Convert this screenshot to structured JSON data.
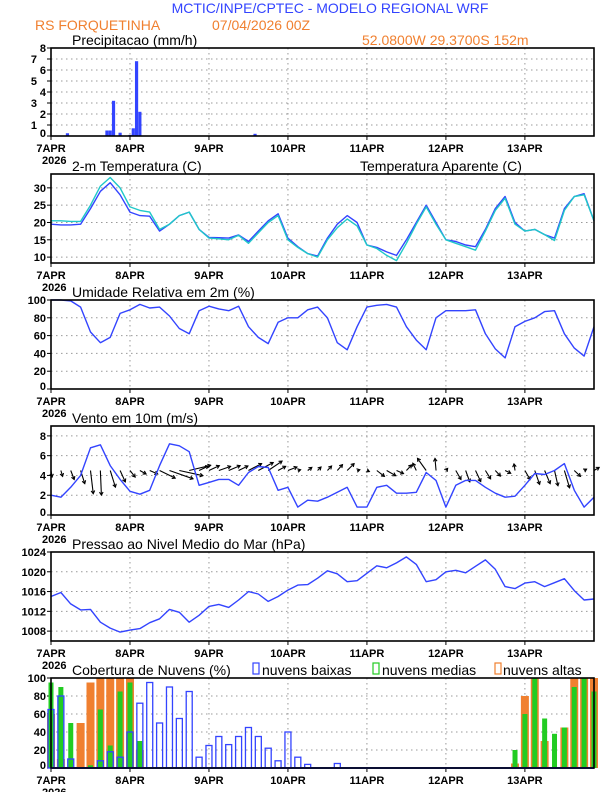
{
  "header": {
    "title": "MCTIC/INPE/CPTEC - MODELO REGIONAL WRF",
    "station": "RS FORQUETINHA",
    "run": "07/04/2026 00Z",
    "location": "52.0800W 29.3700S 152m"
  },
  "colors": {
    "title": "#3344ff",
    "orange": "#f08030",
    "blue": "#3344ff",
    "cyan": "#20c8c8",
    "green": "#22cc22"
  },
  "x_axis": {
    "tick_labels": [
      "7APR",
      "8APR",
      "9APR",
      "10APR",
      "11APR",
      "12APR",
      "13APR"
    ],
    "year_label": "2026",
    "xlim": [
      "2026-04-07T00",
      "2026-04-13T21"
    ]
  },
  "forecast_times": [
    "2026-04-07T00",
    "2026-04-07T03",
    "2026-04-07T06",
    "2026-04-07T09",
    "2026-04-07T12",
    "2026-04-07T15",
    "2026-04-07T18",
    "2026-04-07T21",
    "2026-04-08T00",
    "2026-04-08T03",
    "2026-04-08T06",
    "2026-04-08T09",
    "2026-04-08T12",
    "2026-04-08T15",
    "2026-04-08T18",
    "2026-04-08T21",
    "2026-04-09T00",
    "2026-04-09T03",
    "2026-04-09T06",
    "2026-04-09T09",
    "2026-04-09T12",
    "2026-04-09T15",
    "2026-04-09T18",
    "2026-04-09T21",
    "2026-04-10T00",
    "2026-04-10T03",
    "2026-04-10T06",
    "2026-04-10T09",
    "2026-04-10T12",
    "2026-04-10T15",
    "2026-04-10T18",
    "2026-04-10T21",
    "2026-04-11T00",
    "2026-04-11T03",
    "2026-04-11T06",
    "2026-04-11T09",
    "2026-04-11T12",
    "2026-04-11T15",
    "2026-04-11T18",
    "2026-04-11T21",
    "2026-04-12T00",
    "2026-04-12T03",
    "2026-04-12T06",
    "2026-04-12T09",
    "2026-04-12T12",
    "2026-04-12T15",
    "2026-04-12T18",
    "2026-04-12T21",
    "2026-04-13T00",
    "2026-04-13T03",
    "2026-04-13T06",
    "2026-04-13T09",
    "2026-04-13T12",
    "2026-04-13T15",
    "2026-04-13T18",
    "2026-04-13T21"
  ],
  "chart_data": [
    {
      "type": "bar",
      "title": "Precipitacao (mm/h)",
      "ylim": [
        0,
        8
      ],
      "yticks": [
        0,
        1,
        2,
        3,
        4,
        5,
        6,
        7,
        8
      ],
      "grid": true,
      "color": "#3344ff",
      "points": [
        {
          "t": "2026-04-07T05",
          "v": 0.25
        },
        {
          "t": "2026-04-07T17",
          "v": 0.5
        },
        {
          "t": "2026-04-07T18",
          "v": 0.5
        },
        {
          "t": "2026-04-07T19",
          "v": 3.2
        },
        {
          "t": "2026-04-07T21",
          "v": 0.3
        },
        {
          "t": "2026-04-08T00",
          "v": 0.1
        },
        {
          "t": "2026-04-08T01",
          "v": 0.7
        },
        {
          "t": "2026-04-08T02",
          "v": 6.8
        },
        {
          "t": "2026-04-08T03",
          "v": 2.2
        },
        {
          "t": "2026-04-08T14",
          "v": 0.05
        },
        {
          "t": "2026-04-09T14",
          "v": 0.2
        },
        {
          "t": "2026-04-09T17",
          "v": 0.05
        }
      ]
    },
    {
      "type": "line",
      "title": "2-m Temperatura (C)",
      "ylim": [
        8.3,
        34
      ],
      "yticks": [
        10,
        15,
        20,
        25,
        30
      ],
      "grid": true,
      "series": [
        {
          "name": "2-m Temperatura (C)",
          "color": "#3344ff",
          "values": [
            19.5,
            19.3,
            19.3,
            19.5,
            24,
            29,
            31.5,
            28,
            23,
            22,
            21.8,
            17.5,
            19.5,
            22,
            23,
            18,
            15.7,
            15.6,
            15.5,
            16.4,
            14.5,
            17.5,
            20.5,
            22.5,
            15.5,
            13,
            11,
            10.3,
            15.5,
            19.5,
            22,
            20,
            13.5,
            12.8,
            11.5,
            10.5,
            15,
            20,
            25,
            20,
            15,
            14.5,
            13.5,
            13,
            18,
            24,
            27.5,
            20,
            17.5,
            18,
            16.5,
            15.5,
            24,
            27.5,
            28.3,
            20.5
          ]
        },
        {
          "name": "Temperatura Aparente (C)",
          "color": "#20c8c8",
          "values": [
            20.5,
            20.5,
            20.3,
            20.3,
            25,
            30.5,
            33,
            30,
            24.5,
            23.5,
            23,
            18,
            19.5,
            22,
            23,
            18,
            15.5,
            15.3,
            15,
            16.3,
            14,
            17,
            20,
            22,
            15,
            12.8,
            11,
            10,
            15,
            18.5,
            21,
            19,
            13.5,
            12.5,
            10.5,
            9,
            14,
            19.5,
            24.5,
            19.5,
            15,
            14,
            13,
            12,
            17.5,
            23.5,
            27,
            19.5,
            17.5,
            18,
            16.5,
            14.8,
            23.5,
            27.5,
            28,
            20.5
          ]
        }
      ]
    },
    {
      "type": "line",
      "title": "Umidade Relativa em 2m (%)",
      "ylim": [
        0,
        100
      ],
      "yticks": [
        0,
        20,
        40,
        60,
        80,
        100
      ],
      "grid": true,
      "series": [
        {
          "color": "#3344ff",
          "values": [
            100,
            100,
            99,
            92,
            64,
            52,
            58,
            85,
            89,
            95,
            91,
            92,
            82,
            68,
            62,
            88,
            93,
            90,
            88,
            93,
            70,
            58,
            51,
            75,
            80,
            80,
            89,
            92,
            80,
            52,
            44,
            70,
            92,
            94,
            95,
            92,
            70,
            55,
            44,
            80,
            88,
            88,
            88,
            89,
            62,
            45,
            35,
            70,
            76,
            80,
            87,
            88,
            62,
            46,
            37,
            70
          ]
        }
      ]
    },
    {
      "type": "line+vector",
      "title": "Vento em 10m (m/s)",
      "ylim": [
        0,
        9
      ],
      "yticks": [
        0,
        2,
        4,
        6,
        8
      ],
      "grid": true,
      "series": [
        {
          "color": "#3344ff",
          "values": [
            2,
            1.8,
            2.8,
            4,
            6.8,
            7.1,
            5,
            3.6,
            2.4,
            2.1,
            2.5,
            5,
            7.2,
            7,
            6.4,
            3,
            3.3,
            3.6,
            3.6,
            3,
            4.3,
            4.9,
            4.8,
            2.5,
            2.8,
            0.8,
            1.5,
            1.4,
            1.8,
            2.3,
            2.8,
            0.8,
            0.8,
            2.8,
            3,
            2.2,
            2.2,
            2.3,
            4.3,
            3.5,
            0.8,
            3,
            3.5,
            3.5,
            2.8,
            2.2,
            1.8,
            1.9,
            3,
            4.2,
            4.1,
            4.5,
            5.2,
            2.5,
            0.8,
            1.8
          ]
        }
      ],
      "vectors": {
        "color": "#000000",
        "u": [
          0.3,
          0.5,
          1,
          1.2,
          0.8,
          0.3,
          1.5,
          1.5,
          1.5,
          1.8,
          2.3,
          4.5,
          6.8,
          6.8,
          6.2,
          2.7,
          3,
          3.4,
          3.3,
          2.7,
          3.8,
          4.3,
          4,
          2.2,
          2.6,
          0.8,
          1.2,
          1,
          1.2,
          1.5,
          2,
          0.8,
          0.7,
          2.2,
          2.6,
          2,
          1.5,
          -1,
          -2.5,
          -0.3,
          0.5,
          1.5,
          1.2,
          1.5,
          1.5,
          1.5,
          1.6,
          -0.3,
          1.5,
          1.4,
          1.6,
          1,
          1.5,
          1.8,
          0.7,
          1.5
        ],
        "v": [
          -1.9,
          -1.7,
          -2.6,
          -3.8,
          -6.7,
          -7.1,
          -4.8,
          -3.3,
          -1.9,
          -1,
          -1,
          -2.2,
          -2.4,
          -1.5,
          1.5,
          1.3,
          1.4,
          1.2,
          1.4,
          1.3,
          2,
          2.3,
          2.7,
          1.2,
          1,
          0.2,
          0.9,
          1,
          1.3,
          1.7,
          2,
          0.2,
          -0.3,
          -1.7,
          -1.5,
          -0.9,
          1.6,
          2.1,
          3.5,
          3.5,
          0.6,
          -2.6,
          -3.3,
          -3.2,
          -2.4,
          -1.6,
          -0.8,
          1.9,
          -2.6,
          -4,
          -3.8,
          -4.4,
          -5,
          -1.7,
          0.4,
          0.9
        ]
      }
    },
    {
      "type": "line",
      "title": "Pressao ao Nivel Medio do Mar (hPa)",
      "ylim": [
        1006,
        1024
      ],
      "yticks": [
        1008,
        1012,
        1016,
        1020,
        1024
      ],
      "grid": true,
      "series": [
        {
          "color": "#3344ff",
          "values": [
            1015,
            1015.8,
            1013.5,
            1012.3,
            1012.4,
            1009.8,
            1008.6,
            1007.8,
            1008.2,
            1008.5,
            1009.7,
            1010.5,
            1012.4,
            1011.8,
            1009.8,
            1011.2,
            1013,
            1013.4,
            1012.8,
            1014.3,
            1016,
            1015.5,
            1014,
            1015,
            1016.3,
            1017.3,
            1017.4,
            1018.7,
            1020.2,
            1019.6,
            1018,
            1018.2,
            1019.7,
            1021.2,
            1020.8,
            1021.8,
            1023,
            1021.5,
            1018,
            1018.4,
            1020,
            1020.3,
            1019.8,
            1021.1,
            1022.4,
            1020.5,
            1017,
            1016.6,
            1017.7,
            1018,
            1017,
            1017.8,
            1018.6,
            1016.2,
            1014.3,
            1014.5
          ]
        }
      ]
    },
    {
      "type": "bar",
      "title": "Cobertura de Nuvens (%)",
      "ylim": [
        0,
        100
      ],
      "yticks": [
        0,
        20,
        40,
        60,
        80,
        100
      ],
      "grid": true,
      "legend": "top",
      "series": [
        {
          "name": "nuvens altas",
          "color": "#f08030",
          "values": [
            60,
            10,
            0,
            50,
            95,
            100,
            100,
            100,
            100,
            20,
            0,
            0,
            0,
            0,
            0,
            0,
            0,
            0,
            0,
            0,
            0,
            0,
            0,
            0,
            0,
            0,
            0,
            0,
            0,
            0,
            0,
            0,
            0,
            0,
            0,
            0,
            0,
            0,
            0,
            0,
            0,
            0,
            0,
            0,
            0,
            0,
            0,
            5,
            80,
            100,
            30,
            0,
            45,
            100,
            100,
            100
          ]
        },
        {
          "name": "nuvens medias",
          "color": "#22cc22",
          "values": [
            95,
            90,
            50,
            0,
            3,
            65,
            25,
            85,
            95,
            30,
            0,
            0,
            0,
            0,
            0,
            0,
            0,
            0,
            0,
            0,
            0,
            0,
            0,
            0,
            0,
            0,
            0,
            0,
            0,
            0,
            0,
            0,
            0,
            0,
            0,
            0,
            0,
            0,
            0,
            0,
            0,
            0,
            0,
            0,
            0,
            0,
            0,
            20,
            60,
            100,
            55,
            38,
            45,
            90,
            100,
            85
          ]
        },
        {
          "name": "nuvens baixas",
          "color": "#3344ff",
          "values": [
            65,
            80,
            10,
            0,
            0,
            8,
            18,
            12,
            40,
            72,
            95,
            50,
            90,
            55,
            85,
            12,
            25,
            35,
            26,
            35,
            45,
            35,
            22,
            8,
            40,
            12,
            4,
            0,
            0,
            5,
            0,
            0,
            0,
            0,
            0,
            0,
            0,
            0,
            0,
            0,
            0,
            0,
            0,
            0,
            0,
            0,
            0,
            0,
            0,
            0,
            0,
            0,
            0,
            0,
            0,
            0
          ]
        }
      ]
    }
  ]
}
